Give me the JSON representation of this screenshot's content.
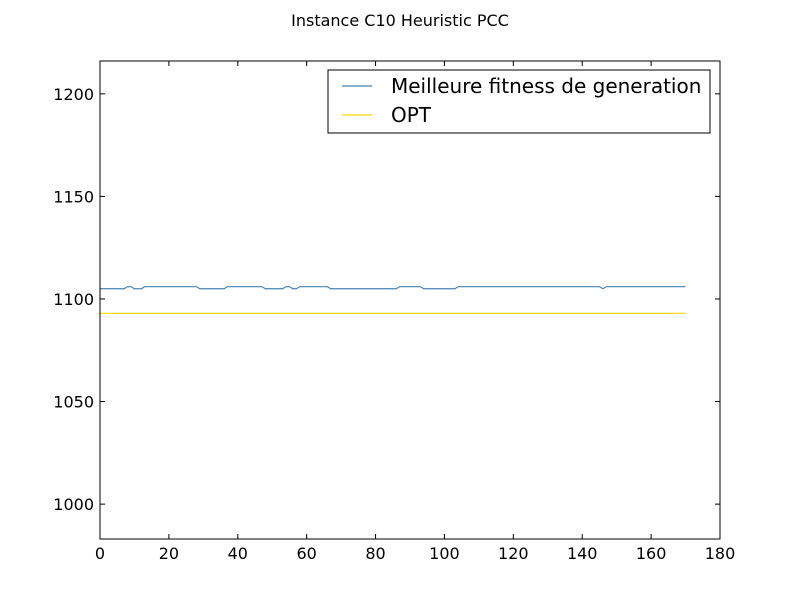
{
  "chart_data": {
    "type": "line",
    "title": "Instance C10 Heuristic PCC",
    "xlabel": "",
    "ylabel": "",
    "xlim": [
      0,
      180
    ],
    "ylim": [
      983,
      1216
    ],
    "xticks": [
      0,
      20,
      40,
      60,
      80,
      100,
      120,
      140,
      160,
      180
    ],
    "yticks": [
      1000,
      1050,
      1100,
      1150,
      1200
    ],
    "grid": false,
    "legend_position": "top-right",
    "series": [
      {
        "name": "Meilleure fitness de generation",
        "color": "#4682b4",
        "x": [
          0,
          7,
          8,
          9,
          10,
          11,
          12,
          13,
          28,
          29,
          36,
          37,
          47,
          48,
          53,
          54,
          55,
          56,
          57,
          58,
          59,
          66,
          67,
          86,
          87,
          93,
          94,
          103,
          104,
          145,
          146,
          147,
          170
        ],
        "y": [
          1105,
          1105,
          1106,
          1106,
          1105,
          1105,
          1105,
          1106,
          1106,
          1105,
          1105,
          1106,
          1106,
          1105,
          1105,
          1106,
          1106,
          1105,
          1105,
          1106,
          1106,
          1106,
          1105,
          1105,
          1106,
          1106,
          1105,
          1105,
          1106,
          1106,
          1105,
          1106,
          1106
        ]
      },
      {
        "name": "OPT",
        "color": "#ffd700",
        "x": [
          0,
          170
        ],
        "y": [
          1093,
          1093
        ]
      }
    ]
  }
}
